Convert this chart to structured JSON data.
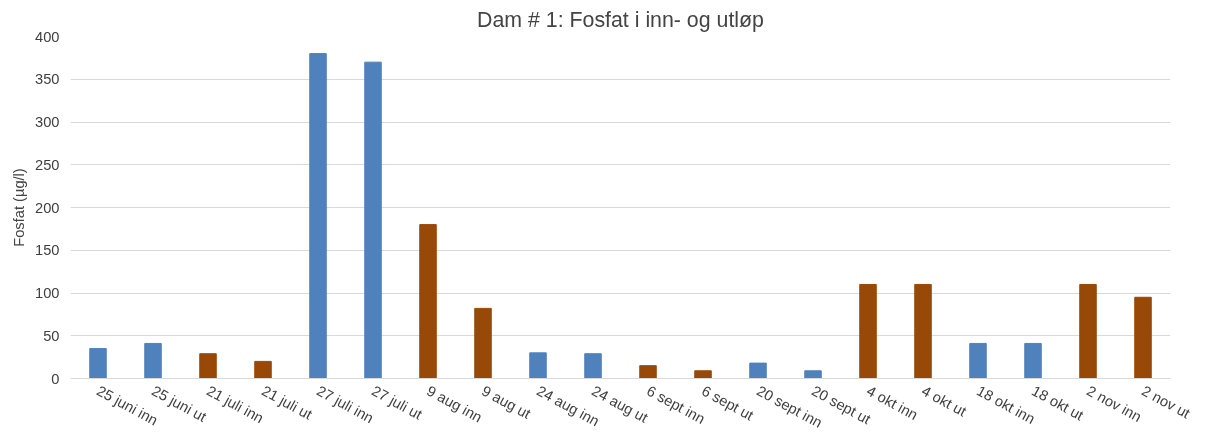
{
  "chart_data": {
    "type": "bar",
    "title": "Dam # 1: Fosfat i inn- og utløp",
    "ylabel": "Fosfat (µg/l)",
    "categories": [
      "25 juni inn",
      "25 juni ut",
      "21 juli inn",
      "21 juli ut",
      "27 juli inn",
      "27 juli ut",
      "9 aug inn",
      "9 aug ut",
      "24 aug inn",
      "24 aug ut",
      "6 sept inn",
      "6 sept ut",
      "20 sept inn",
      "20 sept ut",
      "4 okt inn",
      "4 okt ut",
      "18 okt inn",
      "18 okt ut",
      "2 nov inn",
      "2 nov ut"
    ],
    "values": [
      35,
      41,
      29,
      20,
      380,
      370,
      180,
      82,
      30,
      29,
      15,
      9,
      18,
      9,
      110,
      110,
      41,
      41,
      110,
      95
    ],
    "colors": [
      "#4f81bd",
      "#4f81bd",
      "#984807",
      "#984807",
      "#4f81bd",
      "#4f81bd",
      "#984807",
      "#984807",
      "#4f81bd",
      "#4f81bd",
      "#984807",
      "#984807",
      "#4f81bd",
      "#4f81bd",
      "#984807",
      "#984807",
      "#4f81bd",
      "#4f81bd",
      "#984807",
      "#984807"
    ],
    "ylim": [
      0,
      400
    ],
    "yticks": [
      0,
      50,
      100,
      150,
      200,
      250,
      300,
      350,
      400
    ],
    "grid": "y"
  }
}
